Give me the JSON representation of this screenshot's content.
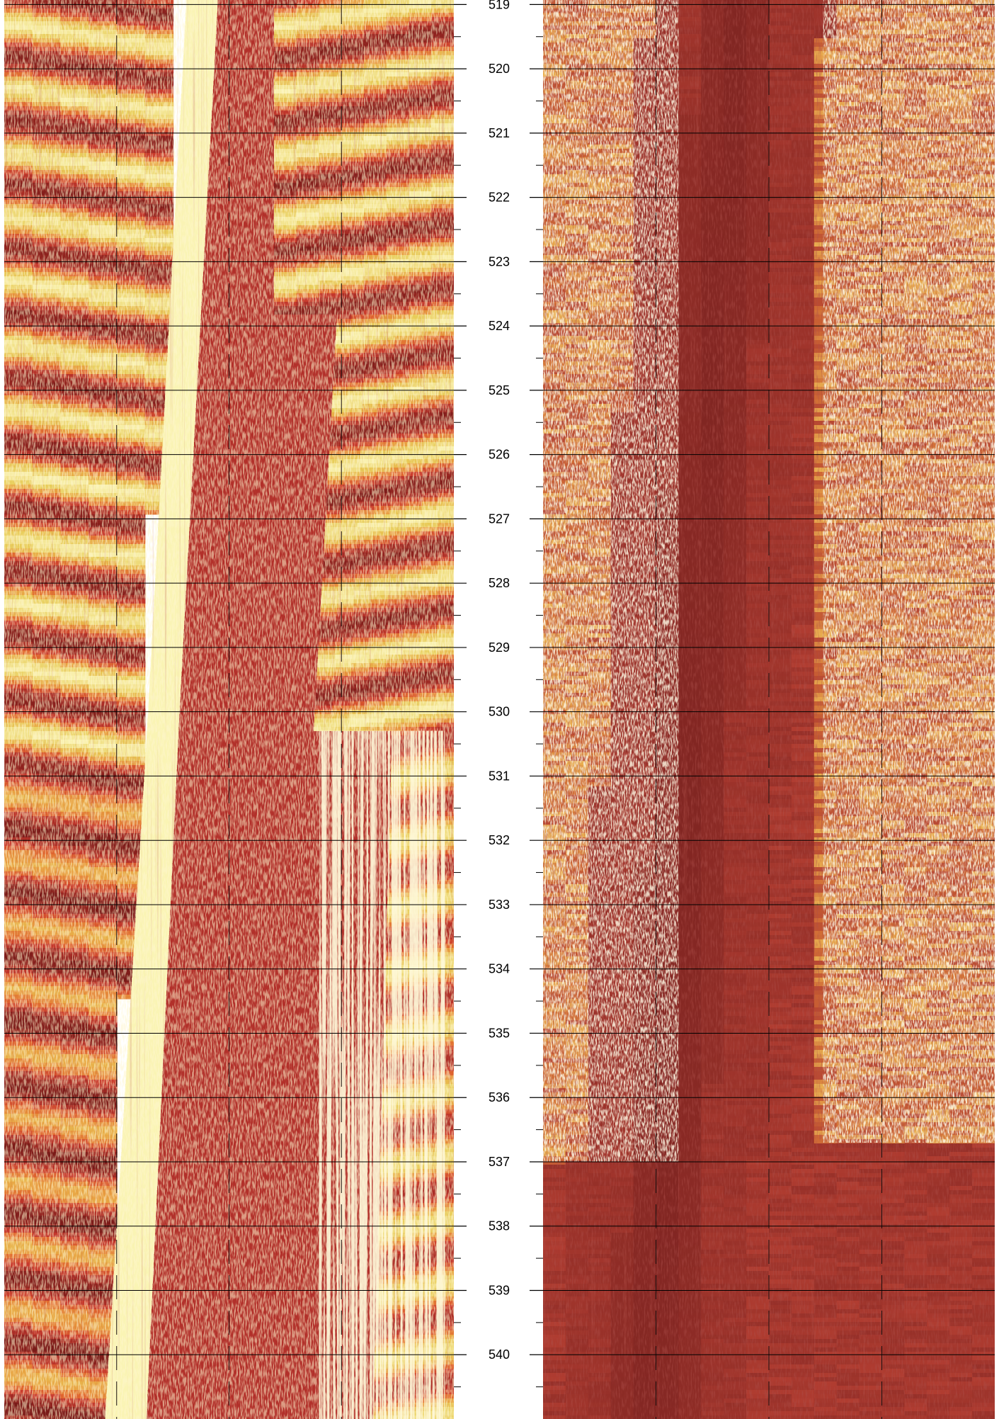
{
  "chart_data": {
    "type": "heatmap",
    "title": "",
    "xlabel": "",
    "ylabel": "",
    "depth_axis": {
      "ylim": [
        518.93,
        541.0
      ],
      "major_ticks": [
        519,
        520,
        521,
        522,
        523,
        524,
        525,
        526,
        527,
        528,
        529,
        530,
        531,
        532,
        533,
        534,
        535,
        536,
        537,
        538,
        539,
        540
      ],
      "minor_step": 0.5,
      "tick_labels": [
        "519",
        "520",
        "521",
        "522",
        "523",
        "524",
        "525",
        "526",
        "527",
        "528",
        "529",
        "530",
        "531",
        "532",
        "533",
        "534",
        "535",
        "536",
        "537",
        "538",
        "539",
        "540"
      ]
    },
    "grid": "on",
    "tracks": [
      {
        "name": "",
        "side": "left",
        "azimuth_divisions": 4,
        "colormap": [
          "#7a1a18",
          "#a32a24",
          "#c8392c",
          "#e0662e",
          "#e8a040",
          "#e8cc58",
          "#faf4b4"
        ],
        "features": [
          {
            "kind": "bright-band",
            "depth_top": 518.93,
            "depth_bottom": 541.0,
            "azimuth_top": 0.44,
            "azimuth_bottom": 0.27,
            "note_color": "#faf4b4"
          },
          {
            "kind": "smooth-zone",
            "depth_top": 518.93,
            "depth_bottom": 541.0,
            "azimuth_top": 0.47,
            "azimuth_bottom": 0.33,
            "azimuth_right_top": 1.0,
            "azimuth_right_bottom": 1.0
          },
          {
            "kind": "bright-streaks",
            "depth_top": 530.3,
            "depth_bottom": 541.0,
            "azimuth_from": 0.7,
            "azimuth_to": 0.98
          }
        ]
      },
      {
        "name": "",
        "side": "right",
        "azimuth_divisions": 4,
        "colormap": [
          "#6e1c1c",
          "#8e2c26",
          "#b03c30",
          "#d06a34",
          "#eab050",
          "#fff0c0"
        ],
        "features": [
          {
            "kind": "dark-band",
            "depth_top": 518.93,
            "depth_bottom": 541.0,
            "azimuth_top": 0.43,
            "azimuth_bottom": 0.24
          },
          {
            "kind": "speckled-bright",
            "depth_top": 518.93,
            "depth_bottom": 537.0,
            "azimuth_from": 0.0,
            "azimuth_to": 0.3
          },
          {
            "kind": "speckled-bright",
            "depth_top": 518.93,
            "depth_bottom": 536.7,
            "azimuth_from": 0.62,
            "azimuth_to": 1.0
          }
        ]
      }
    ]
  }
}
